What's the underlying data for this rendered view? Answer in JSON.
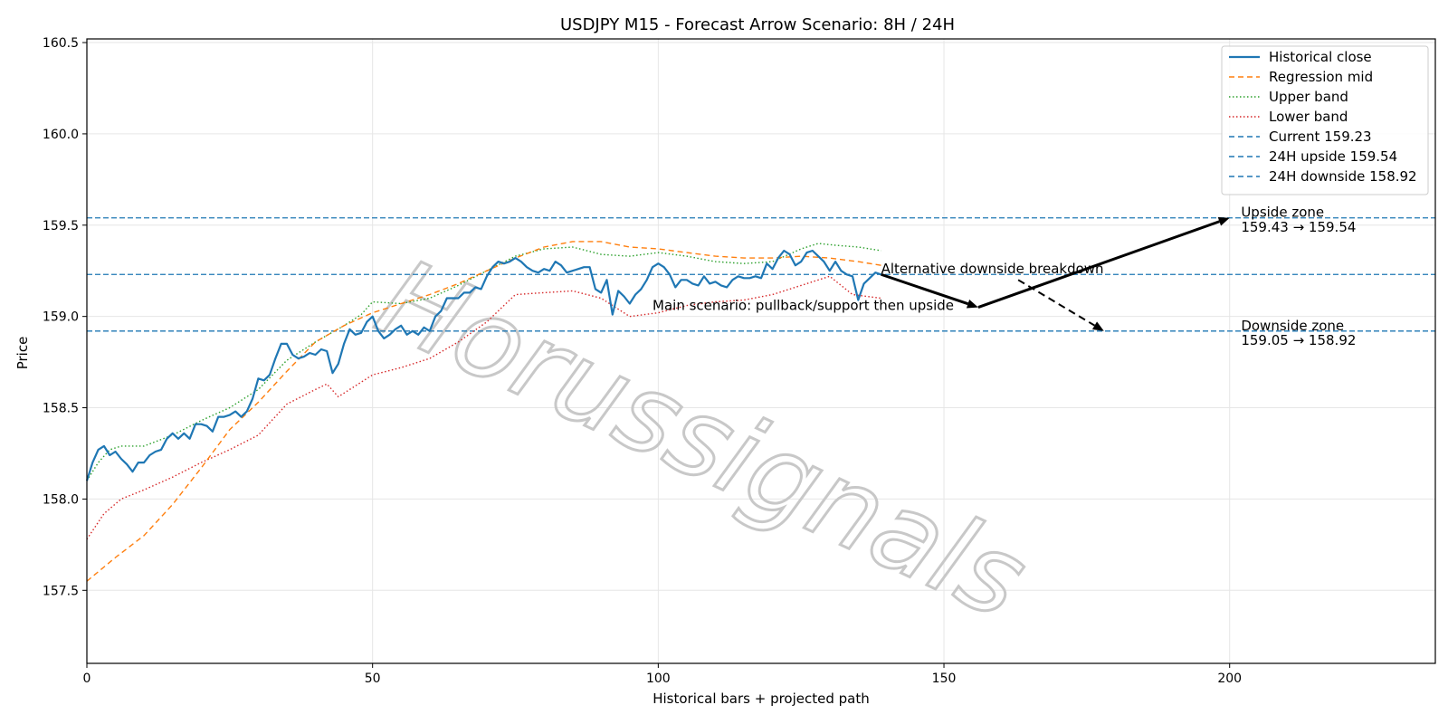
{
  "chart_data": {
    "type": "line",
    "title": "USDJPY M15 - Forecast Arrow Scenario: 8H / 24H",
    "xlabel": "Historical bars + projected path",
    "ylabel": "Price",
    "xlim": [
      0,
      236
    ],
    "ylim": [
      157.1,
      160.52
    ],
    "x_ticks": [
      0,
      50,
      100,
      150,
      200
    ],
    "y_ticks": [
      157.5,
      158.0,
      158.5,
      159.0,
      159.5,
      160.0,
      160.5
    ],
    "y_tick_labels": [
      "157.5",
      "158.0",
      "158.5",
      "159.0",
      "159.5",
      "160.0",
      "160.5"
    ],
    "grid": true,
    "legend_position": "top-right",
    "watermark": "Horussignals",
    "series": [
      {
        "name": "Historical close",
        "color": "#1f77b4",
        "style": "solid",
        "x": [
          0,
          1,
          2,
          3,
          4,
          5,
          6,
          7,
          8,
          9,
          10,
          11,
          12,
          13,
          14,
          15,
          16,
          17,
          18,
          19,
          20,
          21,
          22,
          23,
          24,
          25,
          26,
          27,
          28,
          29,
          30,
          31,
          32,
          33,
          34,
          35,
          36,
          37,
          38,
          39,
          40,
          41,
          42,
          43,
          44,
          45,
          46,
          47,
          48,
          49,
          50,
          51,
          52,
          53,
          54,
          55,
          56,
          57,
          58,
          59,
          60,
          61,
          62,
          63,
          64,
          65,
          66,
          67,
          68,
          69,
          70,
          71,
          72,
          73,
          74,
          75,
          76,
          77,
          78,
          79,
          80,
          81,
          82,
          83,
          84,
          85,
          86,
          87,
          88,
          89,
          90,
          91,
          92,
          93,
          94,
          95,
          96,
          97,
          98,
          99,
          100,
          101,
          102,
          103,
          104,
          105,
          106,
          107,
          108,
          109,
          110,
          111,
          112,
          113,
          114,
          115,
          116,
          117,
          118,
          119,
          120,
          121,
          122,
          123,
          124,
          125,
          126,
          127,
          128,
          129,
          130,
          131,
          132,
          133,
          134,
          135,
          136,
          137,
          138,
          139
        ],
        "values": [
          158.1,
          158.2,
          158.27,
          158.29,
          158.24,
          158.26,
          158.22,
          158.19,
          158.15,
          158.2,
          158.2,
          158.24,
          158.26,
          158.27,
          158.33,
          158.36,
          158.33,
          158.36,
          158.33,
          158.41,
          158.41,
          158.4,
          158.37,
          158.45,
          158.45,
          158.46,
          158.48,
          158.45,
          158.48,
          158.55,
          158.66,
          158.65,
          158.68,
          158.77,
          158.85,
          158.85,
          158.79,
          158.77,
          158.78,
          158.8,
          158.79,
          158.82,
          158.81,
          158.69,
          158.74,
          158.85,
          158.93,
          158.9,
          158.91,
          158.97,
          159.0,
          158.92,
          158.88,
          158.9,
          158.93,
          158.95,
          158.9,
          158.92,
          158.9,
          158.94,
          158.92,
          159.0,
          159.03,
          159.1,
          159.1,
          159.1,
          159.13,
          159.13,
          159.16,
          159.15,
          159.22,
          159.27,
          159.3,
          159.29,
          159.3,
          159.32,
          159.3,
          159.27,
          159.25,
          159.24,
          159.26,
          159.25,
          159.3,
          159.28,
          159.24,
          159.25,
          159.26,
          159.27,
          159.27,
          159.15,
          159.13,
          159.2,
          159.01,
          159.14,
          159.11,
          159.07,
          159.12,
          159.15,
          159.2,
          159.27,
          159.29,
          159.27,
          159.23,
          159.16,
          159.2,
          159.2,
          159.18,
          159.17,
          159.22,
          159.18,
          159.19,
          159.17,
          159.16,
          159.2,
          159.22,
          159.21,
          159.21,
          159.22,
          159.21,
          159.29,
          159.26,
          159.32,
          159.36,
          159.34,
          159.28,
          159.3,
          159.35,
          159.36,
          159.33,
          159.3,
          159.25,
          159.3,
          159.25,
          159.23,
          159.22,
          159.09,
          159.18,
          159.21,
          159.24,
          159.23
        ]
      },
      {
        "name": "Regression mid",
        "color": "#ff7f0e",
        "style": "dashed",
        "x": [
          0,
          5,
          10,
          15,
          20,
          25,
          30,
          35,
          40,
          45,
          50,
          55,
          60,
          65,
          70,
          75,
          80,
          85,
          90,
          95,
          100,
          105,
          110,
          115,
          120,
          125,
          130,
          135,
          139
        ],
        "values": [
          157.55,
          157.68,
          157.8,
          157.97,
          158.17,
          158.38,
          158.53,
          158.7,
          158.86,
          158.95,
          159.02,
          159.07,
          159.12,
          159.18,
          159.25,
          159.32,
          159.38,
          159.41,
          159.41,
          159.38,
          159.37,
          159.35,
          159.33,
          159.32,
          159.32,
          159.33,
          159.32,
          159.3,
          159.28
        ]
      },
      {
        "name": "Upper band",
        "color": "#2ca02c",
        "style": "dotted",
        "x": [
          0,
          2,
          4,
          6,
          10,
          15,
          20,
          25,
          30,
          35,
          40,
          45,
          48,
          50,
          55,
          60,
          65,
          70,
          75,
          80,
          85,
          90,
          95,
          100,
          105,
          110,
          115,
          120,
          125,
          128,
          131,
          135,
          139
        ],
        "values": [
          158.1,
          158.2,
          158.27,
          158.29,
          158.29,
          158.35,
          158.43,
          158.5,
          158.6,
          158.76,
          158.86,
          158.95,
          159.01,
          159.08,
          159.07,
          159.1,
          159.17,
          159.25,
          159.33,
          159.37,
          159.38,
          159.34,
          159.33,
          159.35,
          159.33,
          159.3,
          159.29,
          159.3,
          159.37,
          159.4,
          159.39,
          159.38,
          159.36
        ]
      },
      {
        "name": "Lower band",
        "color": "#d62728",
        "style": "dotted",
        "x": [
          0,
          3,
          6,
          10,
          15,
          20,
          25,
          30,
          35,
          40,
          42,
          44,
          46,
          50,
          55,
          60,
          65,
          70,
          75,
          80,
          85,
          90,
          95,
          100,
          105,
          110,
          115,
          120,
          125,
          130,
          134,
          139
        ],
        "values": [
          157.78,
          157.92,
          158.0,
          158.05,
          158.12,
          158.2,
          158.27,
          158.35,
          158.52,
          158.6,
          158.63,
          158.56,
          158.6,
          158.68,
          158.72,
          158.77,
          158.86,
          158.97,
          159.12,
          159.13,
          159.14,
          159.1,
          159.0,
          159.02,
          159.06,
          159.08,
          159.09,
          159.12,
          159.17,
          159.22,
          159.12,
          159.1
        ]
      }
    ],
    "hlines": [
      {
        "name": "Current 159.23",
        "value": 159.23,
        "color": "#1f77b4",
        "style": "dashed"
      },
      {
        "name": "24H upside 159.54",
        "value": 159.54,
        "color": "#1f77b4",
        "style": "dashed"
      },
      {
        "name": "24H downside 158.92",
        "value": 158.92,
        "color": "#1f77b4",
        "style": "dashed"
      }
    ],
    "arrows": [
      {
        "from": [
          139,
          159.23
        ],
        "to": [
          156,
          159.05
        ],
        "style": "solid"
      },
      {
        "from": [
          156,
          159.05
        ],
        "to": [
          200,
          159.54
        ],
        "style": "solid"
      },
      {
        "from": [
          163,
          159.2
        ],
        "to": [
          178,
          158.92
        ],
        "style": "dashed"
      }
    ],
    "annotations": [
      {
        "text": "Alternative downside breakdown",
        "x": 139,
        "y": 159.26
      },
      {
        "text": "Main scenario: pullback/support then upside",
        "x": 99,
        "y": 159.06
      },
      {
        "text": "Upside zone",
        "x": 202,
        "y": 159.57
      },
      {
        "text": "159.43 → 159.54",
        "x": 202,
        "y": 159.49
      },
      {
        "text": "Downside zone",
        "x": 202,
        "y": 158.95
      },
      {
        "text": "159.05 → 158.92",
        "x": 202,
        "y": 158.87
      }
    ]
  }
}
